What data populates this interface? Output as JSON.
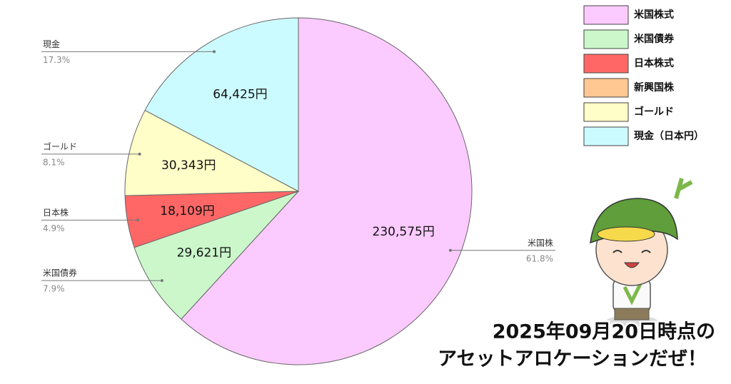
{
  "chart_data": {
    "type": "pie",
    "categories": [
      "米国株",
      "米国債券",
      "日本株",
      "ゴールド",
      "現金"
    ],
    "values": [
      230575,
      29621,
      18109,
      30343,
      64425
    ],
    "value_labels": [
      "230,575円",
      "29,621円",
      "18,109円",
      "30,343円",
      "64,425円"
    ],
    "percentages": [
      61.8,
      7.9,
      4.9,
      8.1,
      17.3
    ],
    "percentage_labels": [
      "61.8%",
      "7.9%",
      "4.9%",
      "8.1%",
      "17.3%"
    ],
    "colors": [
      "#fbcaff",
      "#cbf7cb",
      "#ff6767",
      "#fffdc8",
      "#ccfbff"
    ],
    "legend": [
      {
        "name": "米国株式",
        "color": "#fbcaff"
      },
      {
        "name": "米国債券",
        "color": "#cbf7cb"
      },
      {
        "name": "日本株式",
        "color": "#ff6767"
      },
      {
        "name": "新興国株",
        "color": "#ffc791"
      },
      {
        "name": "ゴールド",
        "color": "#fffdc8"
      },
      {
        "name": "現金（日本円）",
        "color": "#ccfbff"
      }
    ],
    "annotations": [
      "2025年09月20日時点の",
      "アセットアロケーションだぜ！"
    ]
  }
}
